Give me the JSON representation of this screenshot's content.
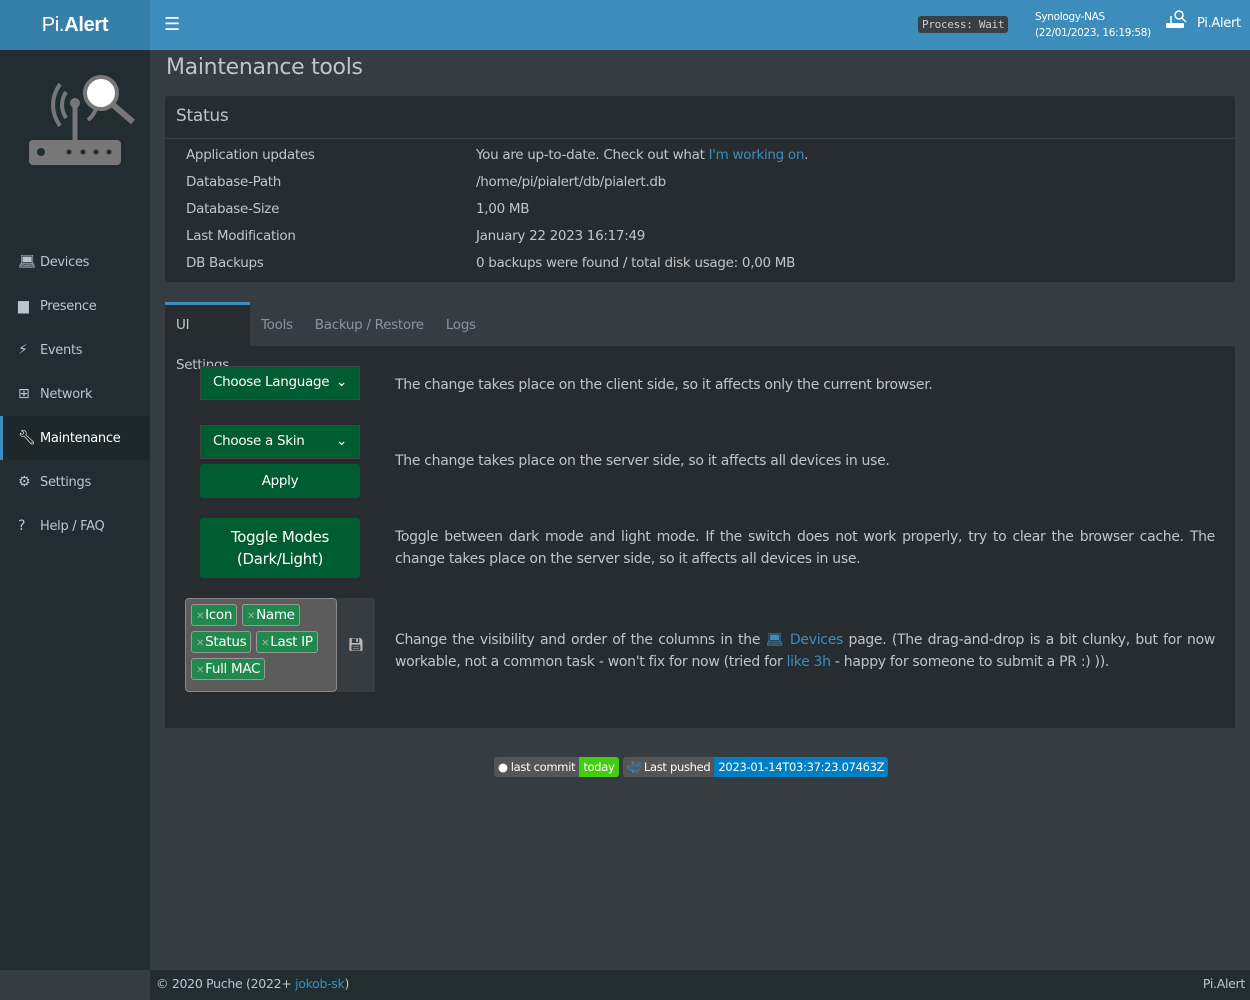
{
  "header": {
    "brand_prefix": "Pi.",
    "brand_suffix": "Alert",
    "process": "Process: Wait",
    "host": "Synology-NAS",
    "datetime": "(22/01/2023, 16:19:58)",
    "right_title": "Pi.Alert",
    "color": "#3c8dbc"
  },
  "sidebar": {
    "items": [
      {
        "label": "Devices",
        "icon": "laptop-icon"
      },
      {
        "label": "Presence",
        "icon": "calendar-icon"
      },
      {
        "label": "Events",
        "icon": "bolt-icon"
      },
      {
        "label": "Network",
        "icon": "sitemap-icon"
      },
      {
        "label": "Maintenance",
        "icon": "wrench-icon",
        "active": true
      },
      {
        "label": "Settings",
        "icon": "gear-icon"
      },
      {
        "label": "Help / FAQ",
        "icon": "question-icon"
      }
    ]
  },
  "page": {
    "title": "Maintenance tools"
  },
  "status": {
    "title": "Status",
    "rows": [
      {
        "key": "Application updates",
        "value": "You are up-to-date. Check out what ",
        "link": "I'm working on",
        "suffix": "."
      },
      {
        "key": "Database-Path",
        "value": "/home/pi/pialert/db/pialert.db"
      },
      {
        "key": "Database-Size",
        "value": "1,00 MB"
      },
      {
        "key": "Last Modification",
        "value": "January 22 2023 16:17:49"
      },
      {
        "key": "DB Backups",
        "value": "0 backups were found / total disk usage: 0,00 MB"
      }
    ]
  },
  "tabs": [
    "UI Settings",
    "Tools",
    "Backup / Restore",
    "Logs"
  ],
  "ui": {
    "language_select": "Choose Language",
    "language_desc": "The change takes place on the client side, so it affects only the current browser.",
    "skin_select": "Choose a Skin",
    "apply": "Apply",
    "skin_desc": "The change takes place on the server side, so it affects all devices in use.",
    "toggle": "Toggle Modes (Dark/Light)",
    "toggle_desc": "Toggle between dark mode and light mode. If the switch does not work properly, try to clear the browser cache. The change takes place on the server side, so it affects all devices in use.",
    "columns": [
      "Icon",
      "Name",
      "Status",
      "Last IP",
      "Full MAC"
    ],
    "columns_desc_1": "Change the visibility and order of the columns in the ",
    "columns_link": "Devices",
    "columns_desc_2": " page. (The drag-and-drop is a bit clunky, but for now workable, not a common task - won't fix for now (tried for ",
    "columns_link2": "like 3h",
    "columns_desc_3": " - happy for someone to submit a PR :) ))."
  },
  "badges": {
    "commit_label": "last commit",
    "commit_value": "today",
    "push_label": "Last pushed",
    "push_value": "2023-01-14T03:37:23.07463Z"
  },
  "footer": {
    "copy": "© 2020 Puche (2022+ ",
    "author": "jokob-sk",
    "close": ")",
    "right": "Pi.Alert"
  }
}
